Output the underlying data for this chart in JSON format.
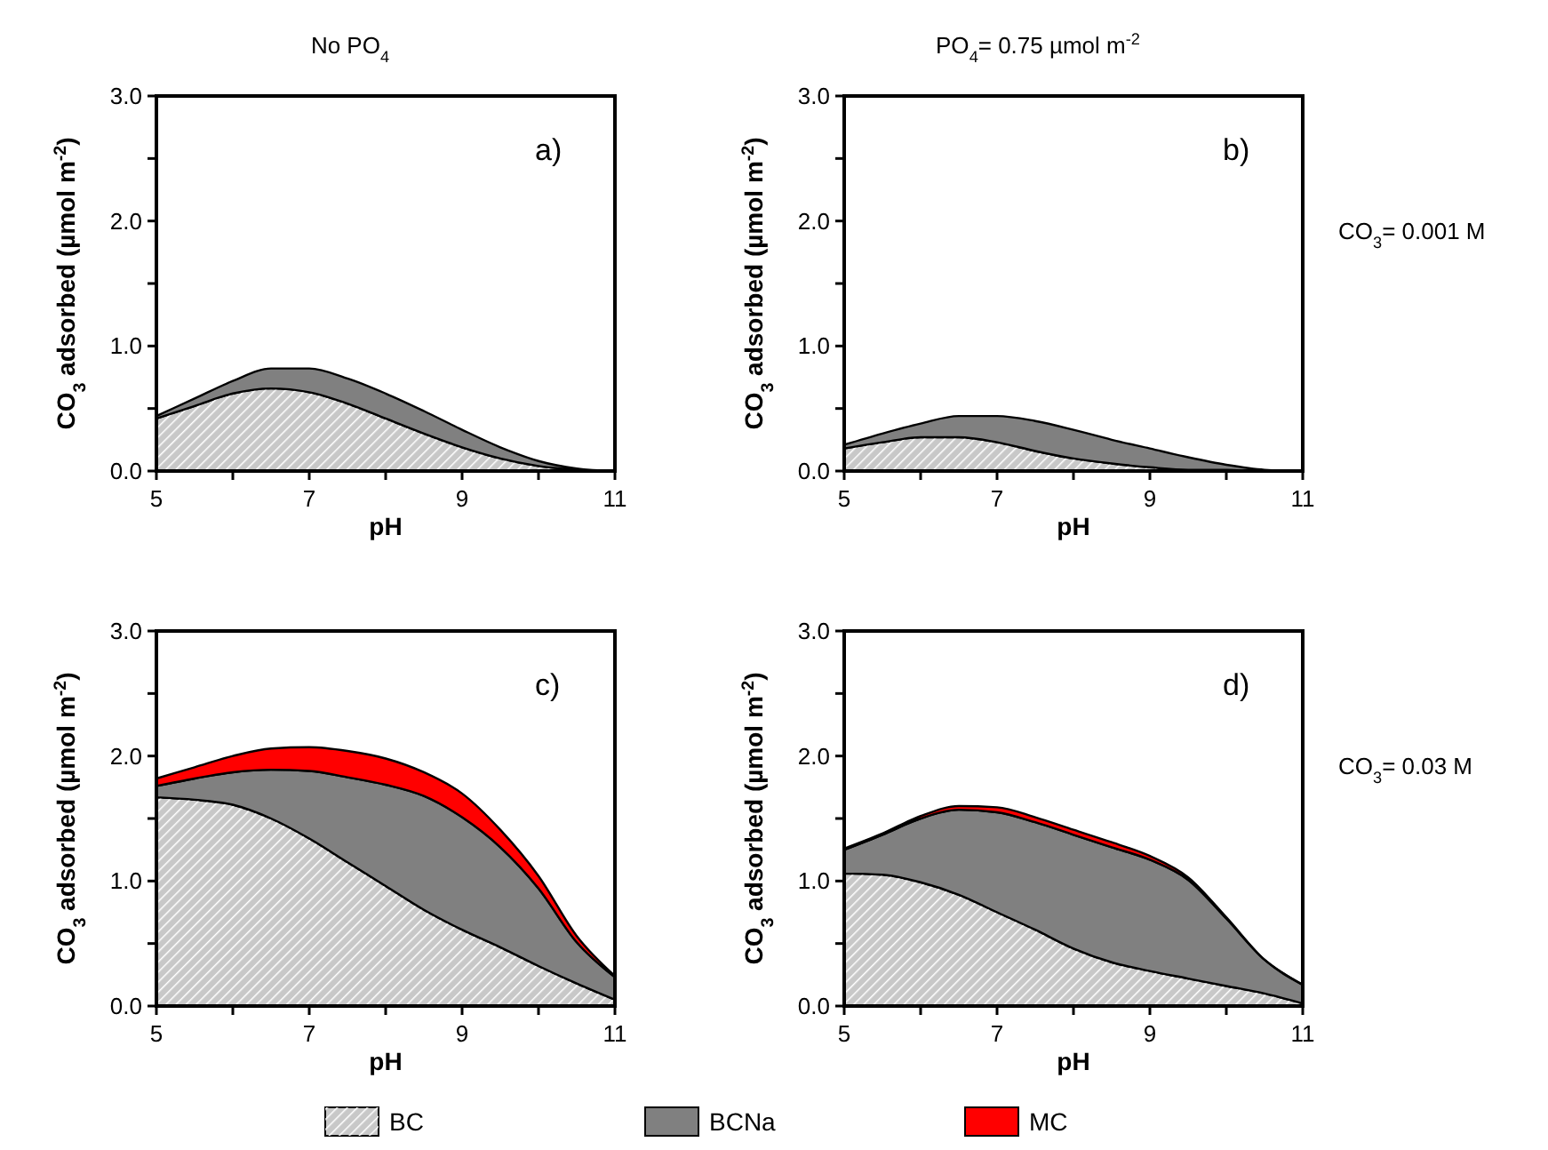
{
  "chart_data": [
    {
      "type": "area",
      "stacked": true,
      "title": "No PO$_{4}$",
      "xlabel": "pH",
      "ylabel": "CO$_{3}$ adsorbed (µmol m$^{-2}$)",
      "annotations": [
        "a)"
      ],
      "x": [
        5,
        5.5,
        6,
        6.5,
        7,
        7.5,
        8,
        8.5,
        9,
        9.5,
        10,
        10.5,
        11
      ],
      "xlim": [
        5,
        11
      ],
      "xticks": [
        5,
        {
          "value": 6,
          "label": null
        },
        7,
        {
          "value": 8,
          "label": null
        },
        9,
        {
          "value": 10,
          "label": null
        },
        11
      ],
      "ylim": [
        0,
        3
      ],
      "yticks": [
        {
          "value": 0,
          "label": "0.0"
        },
        {
          "value": 0.5,
          "label": null
        },
        {
          "value": 1,
          "label": "1.0"
        },
        {
          "value": 1.5,
          "label": null
        },
        {
          "value": 2,
          "label": "2.0"
        },
        {
          "value": 2.5,
          "label": null
        },
        {
          "value": 3,
          "label": "3.0"
        }
      ],
      "series": [
        {
          "color": "#c8c8c8",
          "values": [
            0.42,
            0.52,
            0.62,
            0.66,
            0.63,
            0.54,
            0.42,
            0.3,
            0.19,
            0.1,
            0.04,
            0.01,
            0
          ]
        },
        {
          "color": "#808080",
          "values": [
            0.02,
            0.06,
            0.1,
            0.16,
            0.19,
            0.2,
            0.2,
            0.18,
            0.14,
            0.09,
            0.04,
            0.01,
            0
          ]
        }
      ]
    },
    {
      "type": "area",
      "stacked": true,
      "title": "PO$_{4}$= 0.75 µmol m$^{-2}$",
      "xlabel": "pH",
      "ylabel": "CO$_{3}$ adsorbed (µmol m$^{-2}$)",
      "annotations": [
        "b)",
        "CO$_{3}$= 0.001 M"
      ],
      "x": [
        5,
        5.5,
        6,
        6.5,
        7,
        7.5,
        8,
        8.5,
        9,
        9.5,
        10,
        10.5,
        11
      ],
      "xlim": [
        5,
        11
      ],
      "xticks": [
        5,
        {
          "value": 6,
          "label": null
        },
        7,
        {
          "value": 8,
          "label": null
        },
        9,
        {
          "value": 10,
          "label": null
        },
        11
      ],
      "ylim": [
        0,
        3
      ],
      "yticks": [
        {
          "value": 0,
          "label": "0.0"
        },
        {
          "value": 0.5,
          "label": null
        },
        {
          "value": 1,
          "label": "1.0"
        },
        {
          "value": 1.5,
          "label": null
        },
        {
          "value": 2,
          "label": "2.0"
        },
        {
          "value": 2.5,
          "label": null
        },
        {
          "value": 3,
          "label": "3.0"
        }
      ],
      "series": [
        {
          "color": "#c8c8c8",
          "values": [
            0.18,
            0.23,
            0.27,
            0.27,
            0.23,
            0.16,
            0.1,
            0.06,
            0.03,
            0.01,
            0.01,
            0,
            0
          ]
        },
        {
          "color": "#808080",
          "values": [
            0.03,
            0.07,
            0.11,
            0.17,
            0.21,
            0.24,
            0.23,
            0.19,
            0.15,
            0.1,
            0.04,
            0.01,
            0
          ]
        }
      ]
    },
    {
      "type": "area",
      "stacked": true,
      "xlabel": "pH",
      "ylabel": "CO$_{3}$ adsorbed (µmol m$^{-2}$)",
      "annotations": [
        "c)"
      ],
      "legend": "bottom",
      "x": [
        5,
        5.5,
        6,
        6.5,
        7,
        7.5,
        8,
        8.5,
        9,
        9.5,
        10,
        10.5,
        11
      ],
      "xlim": [
        5,
        11
      ],
      "xticks": [
        5,
        {
          "value": 6,
          "label": null
        },
        7,
        {
          "value": 8,
          "label": null
        },
        9,
        {
          "value": 10,
          "label": null
        },
        11
      ],
      "ylim": [
        0,
        3
      ],
      "yticks": [
        {
          "value": 0,
          "label": "0.0"
        },
        {
          "value": 0.5,
          "label": null
        },
        {
          "value": 1,
          "label": "1.0"
        },
        {
          "value": 1.5,
          "label": null
        },
        {
          "value": 2,
          "label": "2.0"
        },
        {
          "value": 2.5,
          "label": null
        },
        {
          "value": 3,
          "label": "3.0"
        }
      ],
      "series": [
        {
          "name": "BC",
          "color": "#c8c8c8",
          "values": [
            1.67,
            1.65,
            1.61,
            1.5,
            1.34,
            1.15,
            0.96,
            0.77,
            0.61,
            0.47,
            0.32,
            0.18,
            0.05
          ]
        },
        {
          "name": "BCNa",
          "color": "#808080",
          "values": [
            0.09,
            0.17,
            0.26,
            0.39,
            0.54,
            0.68,
            0.81,
            0.91,
            0.9,
            0.8,
            0.62,
            0.33,
            0.18
          ]
        },
        {
          "name": "MC",
          "color": "#ff0000",
          "values": [
            0.06,
            0.09,
            0.13,
            0.17,
            0.19,
            0.21,
            0.21,
            0.19,
            0.19,
            0.14,
            0.1,
            0.05,
            0.01
          ]
        }
      ]
    },
    {
      "type": "area",
      "stacked": true,
      "xlabel": "pH",
      "ylabel": "CO$_{3}$ adsorbed (µmol m$^{-2}$)",
      "annotations": [
        "d)",
        "CO$_{3}$= 0.03 M"
      ],
      "x": [
        5,
        5.5,
        6,
        6.5,
        7,
        7.5,
        8,
        8.5,
        9,
        9.5,
        10,
        10.5,
        11
      ],
      "xlim": [
        5,
        11
      ],
      "xticks": [
        5,
        {
          "value": 6,
          "label": null
        },
        7,
        {
          "value": 8,
          "label": null
        },
        9,
        {
          "value": 10,
          "label": null
        },
        11
      ],
      "ylim": [
        0,
        3
      ],
      "yticks": [
        {
          "value": 0,
          "label": "0.0"
        },
        {
          "value": 0.5,
          "label": null
        },
        {
          "value": 1,
          "label": "1.0"
        },
        {
          "value": 1.5,
          "label": null
        },
        {
          "value": 2,
          "label": "2.0"
        },
        {
          "value": 2.5,
          "label": null
        },
        {
          "value": 3,
          "label": "3.0"
        }
      ],
      "series": [
        {
          "color": "#c8c8c8",
          "values": [
            1.06,
            1.05,
            0.99,
            0.89,
            0.75,
            0.61,
            0.46,
            0.35,
            0.28,
            0.22,
            0.16,
            0.1,
            0.02
          ]
        },
        {
          "color": "#808080",
          "values": [
            0.19,
            0.32,
            0.51,
            0.68,
            0.8,
            0.86,
            0.91,
            0.92,
            0.89,
            0.79,
            0.54,
            0.27,
            0.15
          ]
        },
        {
          "color": "#ff0000",
          "values": [
            0.01,
            0.01,
            0.02,
            0.03,
            0.04,
            0.04,
            0.04,
            0.04,
            0.03,
            0.02,
            0.01,
            0,
            0
          ]
        }
      ]
    }
  ]
}
